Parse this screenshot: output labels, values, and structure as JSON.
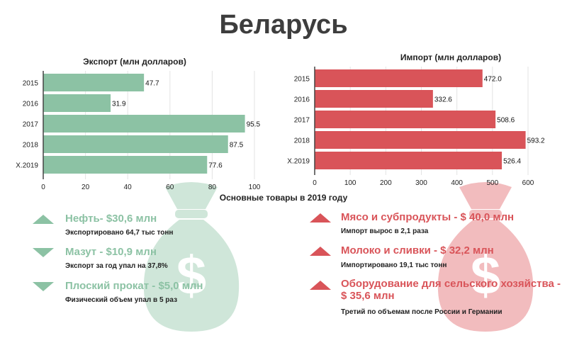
{
  "title": "Беларусь",
  "colors": {
    "export": "#8cc2a4",
    "import": "#d95459",
    "bag_green": "#cfe6d9",
    "bag_red": "#f2bcbe"
  },
  "chart_data": [
    {
      "type": "bar",
      "orientation": "horizontal",
      "title": "Экспорт (млн долларов)",
      "categories": [
        "2015",
        "2016",
        "2017",
        "2018",
        "Х.2019"
      ],
      "values": [
        47.7,
        31.9,
        95.5,
        87.5,
        77.6
      ],
      "value_labels": [
        "47.7",
        "31.9",
        "95.5",
        "87.5",
        "77.6"
      ],
      "xlim": [
        0,
        100
      ],
      "ticks": [
        "0",
        "20",
        "40",
        "60",
        "80",
        "100"
      ],
      "color": "#8cc2a4",
      "grid": true
    },
    {
      "type": "bar",
      "orientation": "horizontal",
      "title": "Импорт (млн долларов)",
      "categories": [
        "2015",
        "2016",
        "2017",
        "2018",
        "Х.2019"
      ],
      "values": [
        472.0,
        332.6,
        508.6,
        593.2,
        526.4
      ],
      "value_labels": [
        "472.0",
        "332.6",
        "508.6",
        "593.2",
        "526.4"
      ],
      "xlim": [
        0,
        600
      ],
      "ticks": [
        "0",
        "100",
        "200",
        "300",
        "400",
        "500",
        "600"
      ],
      "color": "#d95459",
      "grid": true
    }
  ],
  "goods": {
    "title": "Основные товары в 2019 году",
    "export": [
      {
        "trend": "up-icon",
        "head": "Нефть- $30,6 млн",
        "sub": "Экспортировано 64,7 тыс тонн"
      },
      {
        "trend": "down-icon",
        "head": "Мазут - $10,9 млн",
        "sub": "Экспорт за год упал на 37,8%"
      },
      {
        "trend": "down-icon",
        "head": "Плоский прокат - $5,0 млн",
        "sub": "Физический объем упал в 5 раз"
      }
    ],
    "import": [
      {
        "trend": "up-icon",
        "head": "Мясо и субпродукты - $ 40,0 млн",
        "sub": "Импорт вырос в 2,1 раза"
      },
      {
        "trend": "up-icon",
        "head": "Молоко и сливки - $ 32,2 млн",
        "sub": "Импортировано 19,1 тыс тонн"
      },
      {
        "trend": "up-icon",
        "head": "Оборудование  для  сельского хозяйства - $ 35,6 млн",
        "sub": "Третий по объемам после России и Германии"
      }
    ]
  }
}
